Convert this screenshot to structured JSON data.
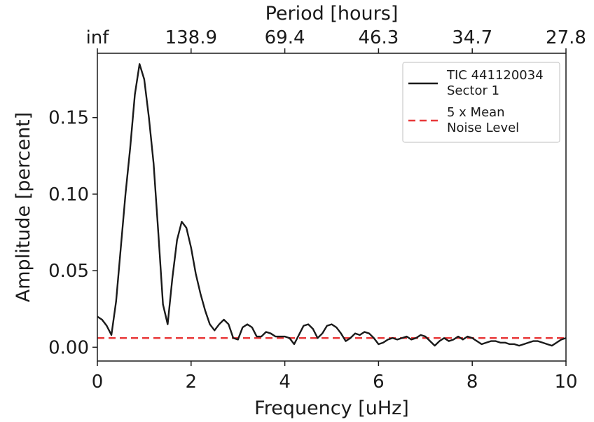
{
  "chart_data": {
    "type": "line",
    "title": "",
    "xlabel": "Frequency [uHz]",
    "ylabel": "Amplitude [percent]",
    "top_xlabel": "Period [hours]",
    "xlim": [
      0,
      10
    ],
    "ylim": [
      -0.009,
      0.192
    ],
    "x_ticks": [
      "0",
      "2",
      "4",
      "6",
      "8",
      "10"
    ],
    "x_tick_values": [
      0,
      2,
      4,
      6,
      8,
      10
    ],
    "y_ticks": [
      "0.00",
      "0.05",
      "0.10",
      "0.15"
    ],
    "y_tick_values": [
      0,
      0.05,
      0.1,
      0.15
    ],
    "top_ticks": [
      "inf",
      "138.9",
      "69.4",
      "46.3",
      "34.7",
      "27.8"
    ],
    "top_tick_freqs": [
      0,
      2,
      4,
      6,
      8,
      10
    ],
    "grid": false,
    "legend_position": "top-right",
    "series": [
      {
        "name": "TIC 441120034\nSector 1",
        "color": "#1a1a1a",
        "style": "solid",
        "x": [
          0.0,
          0.1,
          0.2,
          0.3,
          0.4,
          0.5,
          0.6,
          0.7,
          0.8,
          0.9,
          1.0,
          1.1,
          1.2,
          1.3,
          1.4,
          1.5,
          1.6,
          1.7,
          1.8,
          1.9,
          2.0,
          2.1,
          2.2,
          2.3,
          2.4,
          2.5,
          2.6,
          2.7,
          2.8,
          2.9,
          3.0,
          3.1,
          3.2,
          3.3,
          3.4,
          3.5,
          3.6,
          3.7,
          3.8,
          3.9,
          4.0,
          4.1,
          4.2,
          4.3,
          4.4,
          4.5,
          4.6,
          4.7,
          4.8,
          4.9,
          5.0,
          5.1,
          5.2,
          5.3,
          5.4,
          5.5,
          5.6,
          5.7,
          5.8,
          5.9,
          6.0,
          6.1,
          6.2,
          6.3,
          6.4,
          6.5,
          6.6,
          6.7,
          6.8,
          6.9,
          7.0,
          7.1,
          7.2,
          7.3,
          7.4,
          7.5,
          7.6,
          7.7,
          7.8,
          7.9,
          8.0,
          8.1,
          8.2,
          8.3,
          8.4,
          8.5,
          8.6,
          8.7,
          8.8,
          8.9,
          9.0,
          9.1,
          9.2,
          9.3,
          9.4,
          9.5,
          9.6,
          9.7,
          9.8,
          9.9,
          10.0
        ],
        "y": [
          0.02,
          0.018,
          0.014,
          0.008,
          0.03,
          0.065,
          0.1,
          0.13,
          0.165,
          0.185,
          0.175,
          0.15,
          0.12,
          0.075,
          0.028,
          0.015,
          0.045,
          0.07,
          0.082,
          0.078,
          0.065,
          0.048,
          0.035,
          0.024,
          0.015,
          0.011,
          0.015,
          0.018,
          0.015,
          0.006,
          0.005,
          0.013,
          0.015,
          0.013,
          0.007,
          0.007,
          0.01,
          0.009,
          0.007,
          0.007,
          0.007,
          0.006,
          0.002,
          0.008,
          0.014,
          0.015,
          0.012,
          0.006,
          0.009,
          0.014,
          0.015,
          0.013,
          0.009,
          0.004,
          0.006,
          0.009,
          0.008,
          0.01,
          0.009,
          0.006,
          0.002,
          0.003,
          0.005,
          0.006,
          0.005,
          0.006,
          0.007,
          0.005,
          0.006,
          0.008,
          0.007,
          0.004,
          0.001,
          0.004,
          0.006,
          0.004,
          0.005,
          0.007,
          0.005,
          0.007,
          0.006,
          0.004,
          0.002,
          0.003,
          0.004,
          0.004,
          0.003,
          0.003,
          0.002,
          0.002,
          0.001,
          0.002,
          0.003,
          0.004,
          0.004,
          0.003,
          0.002,
          0.001,
          0.003,
          0.005,
          0.006
        ]
      },
      {
        "name": "5 x Mean\nNoise Level",
        "color": "#e8393a",
        "style": "dashed",
        "x": [
          0,
          10
        ],
        "y": [
          0.006,
          0.006
        ]
      }
    ]
  }
}
